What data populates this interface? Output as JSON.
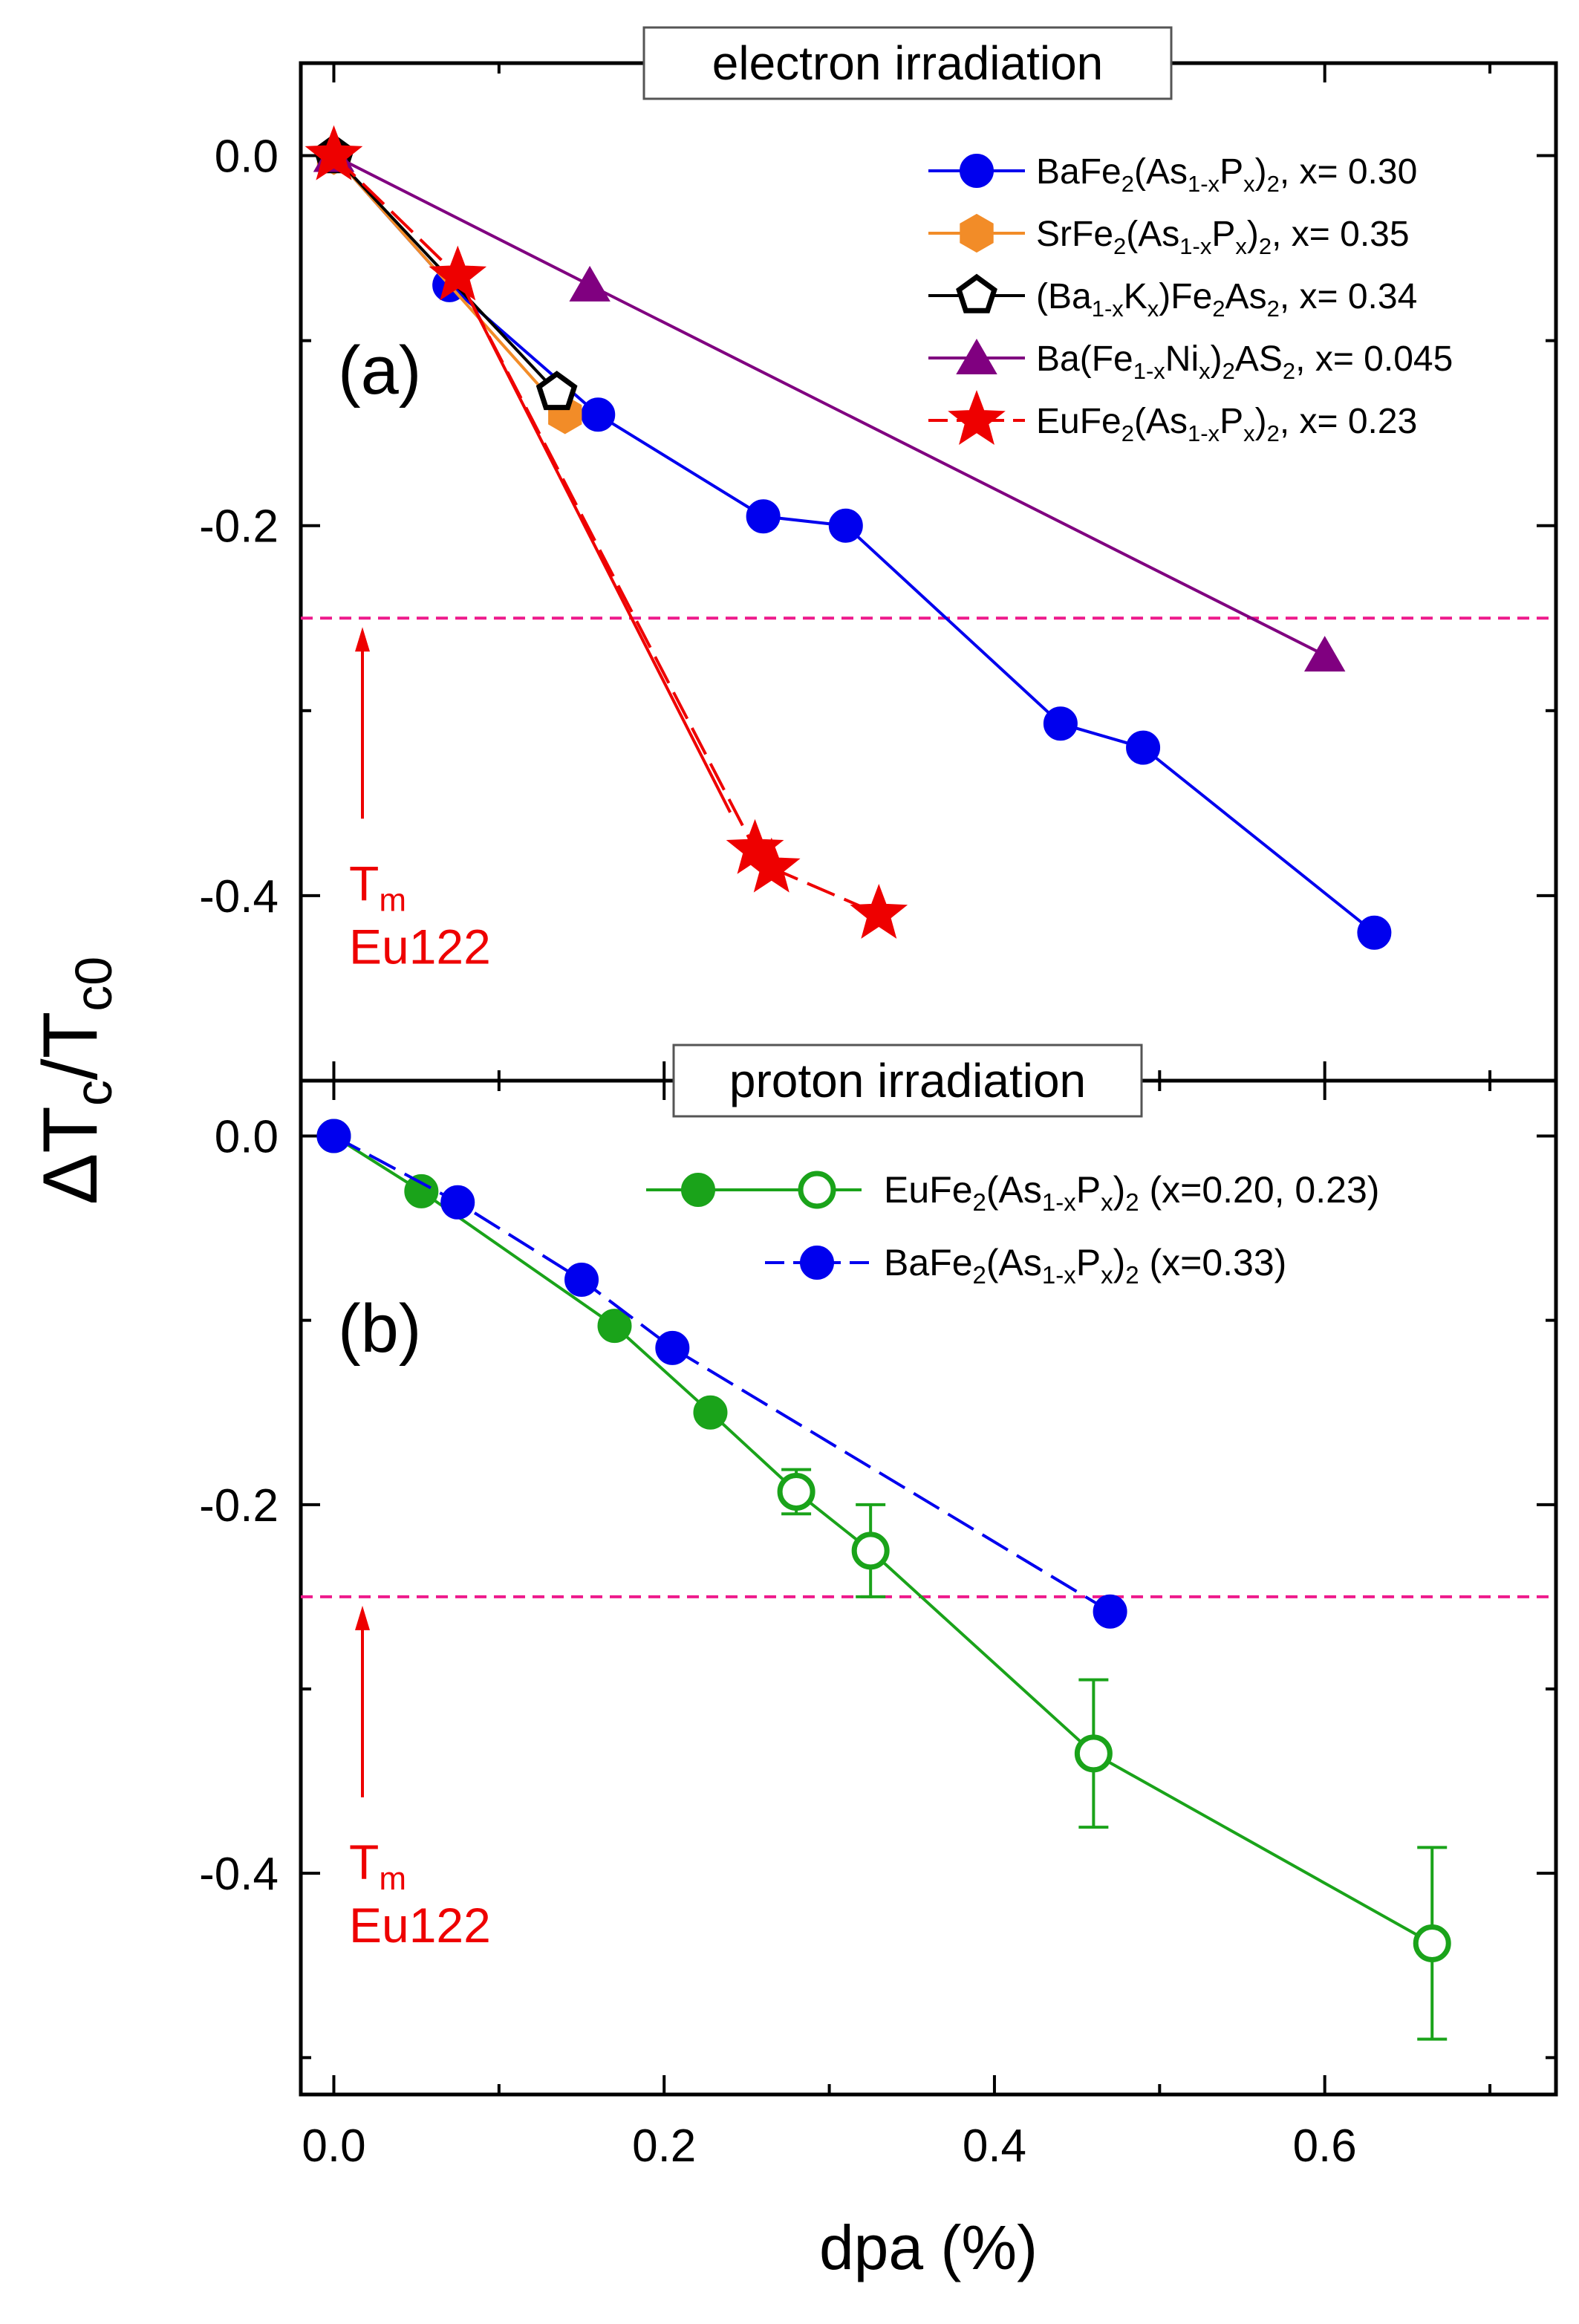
{
  "colors": {
    "blue": "#0000ee",
    "orange": "#f28c28",
    "black": "#000000",
    "purple": "#800080",
    "red": "#ee0000",
    "green": "#1aa31a",
    "magenta": "#ee1a8c"
  },
  "chart_data": [
    {
      "type": "line",
      "panel_label": "(a)",
      "title": "electron irradiation",
      "xlabel": "dpa (%)",
      "ylabel": "ΔTc/Tc0",
      "xlim": [
        -0.02,
        0.74
      ],
      "ylim": [
        -0.5,
        0.05
      ],
      "yticks": [
        0.0,
        -0.2,
        -0.4
      ],
      "ytick_labels": [
        "0.0",
        "-0.2",
        "-0.4"
      ],
      "reference_line": {
        "y": -0.25,
        "label_line1": "T",
        "label_sub": "m",
        "label_line2": "Eu122"
      },
      "series": [
        {
          "name": "BaFe2(As1-xPx)2, x= 0.30",
          "color": "#0000ee",
          "marker": "circle",
          "dash": "solid",
          "x": [
            0.0,
            0.07,
            0.16,
            0.26,
            0.31,
            0.44,
            0.49,
            0.63
          ],
          "y": [
            0.0,
            -0.07,
            -0.14,
            -0.195,
            -0.2,
            -0.307,
            -0.32,
            -0.42
          ],
          "legend_parts": [
            [
              "BaFe",
              ""
            ],
            [
              "2",
              "sub"
            ],
            [
              "(As",
              ""
            ],
            [
              "1-x",
              "sub"
            ],
            [
              "P",
              ""
            ],
            [
              "x",
              "sub"
            ],
            [
              ")",
              ""
            ],
            [
              "2",
              "sub"
            ],
            [
              ", x= 0.30",
              ""
            ]
          ]
        },
        {
          "name": "SrFe2(As1-xPx)2, x= 0.35",
          "color": "#f28c28",
          "marker": "hexagon",
          "dash": "solid",
          "x": [
            0.0,
            0.14
          ],
          "y": [
            0.0,
            -0.14
          ],
          "legend_parts": [
            [
              "SrFe",
              ""
            ],
            [
              "2",
              "sub"
            ],
            [
              "(As",
              ""
            ],
            [
              "1-x",
              "sub"
            ],
            [
              "P",
              ""
            ],
            [
              "x",
              "sub"
            ],
            [
              ")",
              ""
            ],
            [
              "2",
              "sub"
            ],
            [
              ", x= 0.35",
              ""
            ]
          ]
        },
        {
          "name": "(Ba1-xKx)Fe2As2, x= 0.34",
          "color": "#000000",
          "marker": "pentagon-open",
          "dash": "solid",
          "x": [
            0.0,
            0.135
          ],
          "y": [
            0.0,
            -0.128
          ],
          "legend_parts": [
            [
              "(Ba",
              ""
            ],
            [
              "1-x",
              "sub"
            ],
            [
              "K",
              ""
            ],
            [
              "x",
              "sub"
            ],
            [
              ")Fe",
              ""
            ],
            [
              "2",
              "sub"
            ],
            [
              "As",
              ""
            ],
            [
              "2",
              "sub"
            ],
            [
              ", x= 0.34",
              ""
            ]
          ]
        },
        {
          "name": "Ba(Fe1-xNix)2AS2, x= 0.045",
          "color": "#800080",
          "marker": "triangle",
          "dash": "solid",
          "x": [
            0.0,
            0.155,
            0.6
          ],
          "y": [
            0.0,
            -0.07,
            -0.27
          ],
          "legend_parts": [
            [
              "Ba(Fe",
              ""
            ],
            [
              "1-x",
              "sub"
            ],
            [
              "Ni",
              ""
            ],
            [
              "x",
              "sub"
            ],
            [
              ")",
              ""
            ],
            [
              "2",
              "sub"
            ],
            [
              "AS",
              ""
            ],
            [
              "2",
              "sub"
            ],
            [
              ", x= 0.045",
              ""
            ]
          ]
        },
        {
          "name": "EuFe2(As1-xPx)2, x= 0.23",
          "color": "#ee0000",
          "marker": "star",
          "dash": "dashed",
          "x": [
            0.0,
            0.075,
            0.255,
            0.265,
            0.33
          ],
          "y": [
            0.0,
            -0.065,
            -0.375,
            -0.385,
            -0.41
          ],
          "legend_parts": [
            [
              "EuFe",
              ""
            ],
            [
              "2",
              "sub"
            ],
            [
              "(As",
              ""
            ],
            [
              "1-x",
              "sub"
            ],
            [
              "P",
              ""
            ],
            [
              "x",
              "sub"
            ],
            [
              ")",
              ""
            ],
            [
              "2",
              "sub"
            ],
            [
              ", x= 0.23",
              ""
            ]
          ],
          "extra_line": {
            "x": [
              0.075,
              0.24
            ],
            "y": [
              -0.065,
              -0.355
            ]
          }
        }
      ]
    },
    {
      "type": "line",
      "panel_label": "(b)",
      "title": "proton irradiation",
      "xlabel": "dpa (%)",
      "ylabel": "ΔTc/Tc0",
      "xlim": [
        -0.02,
        0.74
      ],
      "ylim": [
        -0.52,
        0.03
      ],
      "yticks": [
        0.0,
        -0.2,
        -0.4
      ],
      "ytick_labels": [
        "0.0",
        "-0.2",
        "-0.4"
      ],
      "xticks": [
        0.0,
        0.2,
        0.4,
        0.6
      ],
      "xtick_labels": [
        "0.0",
        "0.2",
        "0.4",
        "0.6"
      ],
      "reference_line": {
        "y": -0.25,
        "label_line1": "T",
        "label_sub": "m",
        "label_line2": "Eu122"
      },
      "series": [
        {
          "name": "EuFe2(As1-xPx)2 (x=0.20, 0.23)",
          "color": "#1aa31a",
          "marker": "circle-filled-open",
          "dash": "solid",
          "x": [
            0.0,
            0.053,
            0.17,
            0.228,
            0.28,
            0.325,
            0.46,
            0.665
          ],
          "y": [
            0.0,
            -0.03,
            -0.103,
            -0.15,
            -0.193,
            -0.225,
            -0.335,
            -0.438
          ],
          "yerr": [
            0,
            0,
            0,
            0,
            0.012,
            0.025,
            0.04,
            0.052
          ],
          "open": [
            false,
            false,
            false,
            false,
            true,
            true,
            true,
            true
          ],
          "legend_parts": [
            [
              "EuFe",
              ""
            ],
            [
              "2",
              "sub"
            ],
            [
              "(As",
              ""
            ],
            [
              "1-x",
              "sub"
            ],
            [
              "P",
              ""
            ],
            [
              "x",
              "sub"
            ],
            [
              ")",
              ""
            ],
            [
              "2",
              "sub"
            ],
            [
              " (x=0.20, 0.23)",
              ""
            ]
          ]
        },
        {
          "name": "BaFe2(As1-xPx)2 (x=0.33)",
          "color": "#0000ee",
          "marker": "circle",
          "dash": "dashed",
          "x": [
            0.0,
            0.075,
            0.15,
            0.205,
            0.47
          ],
          "y": [
            0.0,
            -0.036,
            -0.078,
            -0.115,
            -0.258
          ],
          "legend_parts": [
            [
              "BaFe",
              ""
            ],
            [
              "2",
              "sub"
            ],
            [
              "(As",
              ""
            ],
            [
              "1-x",
              "sub"
            ],
            [
              "P",
              ""
            ],
            [
              "x",
              "sub"
            ],
            [
              ")",
              ""
            ],
            [
              "2",
              "sub"
            ],
            [
              " (x=0.33)",
              ""
            ]
          ]
        }
      ]
    }
  ]
}
